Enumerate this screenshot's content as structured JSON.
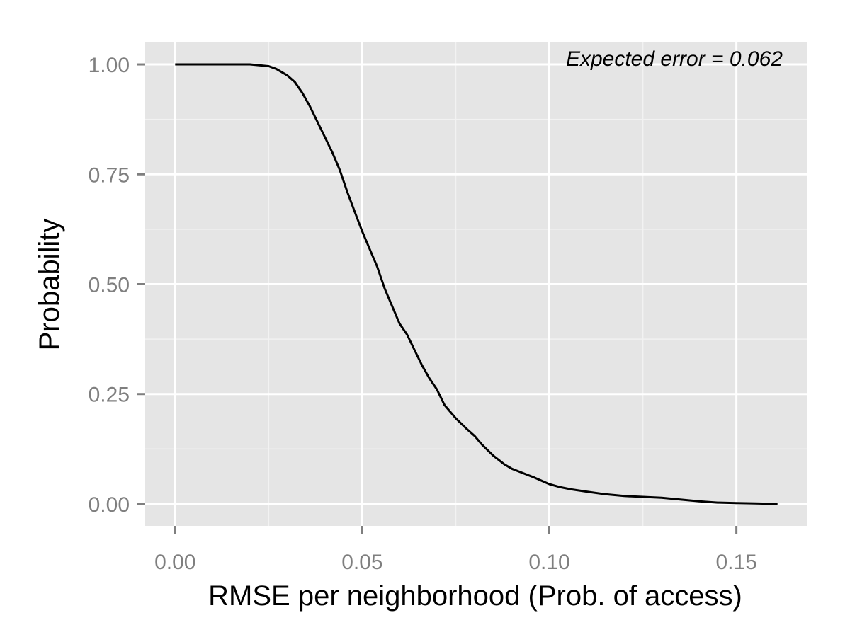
{
  "chart_data": {
    "type": "line",
    "title": "",
    "xlabel": "RMSE per neighborhood (Prob. of access)",
    "ylabel": "Probability",
    "xlim": [
      -0.008,
      0.169
    ],
    "ylim": [
      -0.05,
      1.05
    ],
    "x_ticks": [
      0.0,
      0.05,
      0.1,
      0.15
    ],
    "x_tick_labels": [
      "0.00",
      "0.05",
      "0.10",
      "0.15"
    ],
    "y_ticks": [
      0.0,
      0.25,
      0.5,
      0.75,
      1.0
    ],
    "y_tick_labels": [
      "0.00",
      "0.25",
      "0.50",
      "0.75",
      "1.00"
    ],
    "grid": true,
    "annotation": "Expected error = 0.062",
    "series": [
      {
        "color": "#000000",
        "x": [
          0.0,
          0.02,
          0.025,
          0.027,
          0.03,
          0.032,
          0.034,
          0.036,
          0.038,
          0.04,
          0.042,
          0.044,
          0.046,
          0.048,
          0.05,
          0.052,
          0.054,
          0.056,
          0.058,
          0.06,
          0.062,
          0.064,
          0.066,
          0.068,
          0.07,
          0.072,
          0.075,
          0.078,
          0.08,
          0.082,
          0.085,
          0.088,
          0.09,
          0.093,
          0.096,
          0.1,
          0.103,
          0.106,
          0.11,
          0.115,
          0.12,
          0.125,
          0.13,
          0.135,
          0.14,
          0.145,
          0.15,
          0.155,
          0.161
        ],
        "y": [
          1.0,
          1.0,
          0.996,
          0.99,
          0.975,
          0.96,
          0.935,
          0.905,
          0.87,
          0.835,
          0.8,
          0.76,
          0.71,
          0.665,
          0.62,
          0.58,
          0.54,
          0.49,
          0.45,
          0.41,
          0.385,
          0.35,
          0.315,
          0.285,
          0.26,
          0.225,
          0.195,
          0.17,
          0.155,
          0.135,
          0.11,
          0.09,
          0.08,
          0.07,
          0.06,
          0.045,
          0.038,
          0.033,
          0.028,
          0.022,
          0.018,
          0.016,
          0.014,
          0.01,
          0.006,
          0.003,
          0.002,
          0.001,
          0.0
        ]
      }
    ]
  }
}
